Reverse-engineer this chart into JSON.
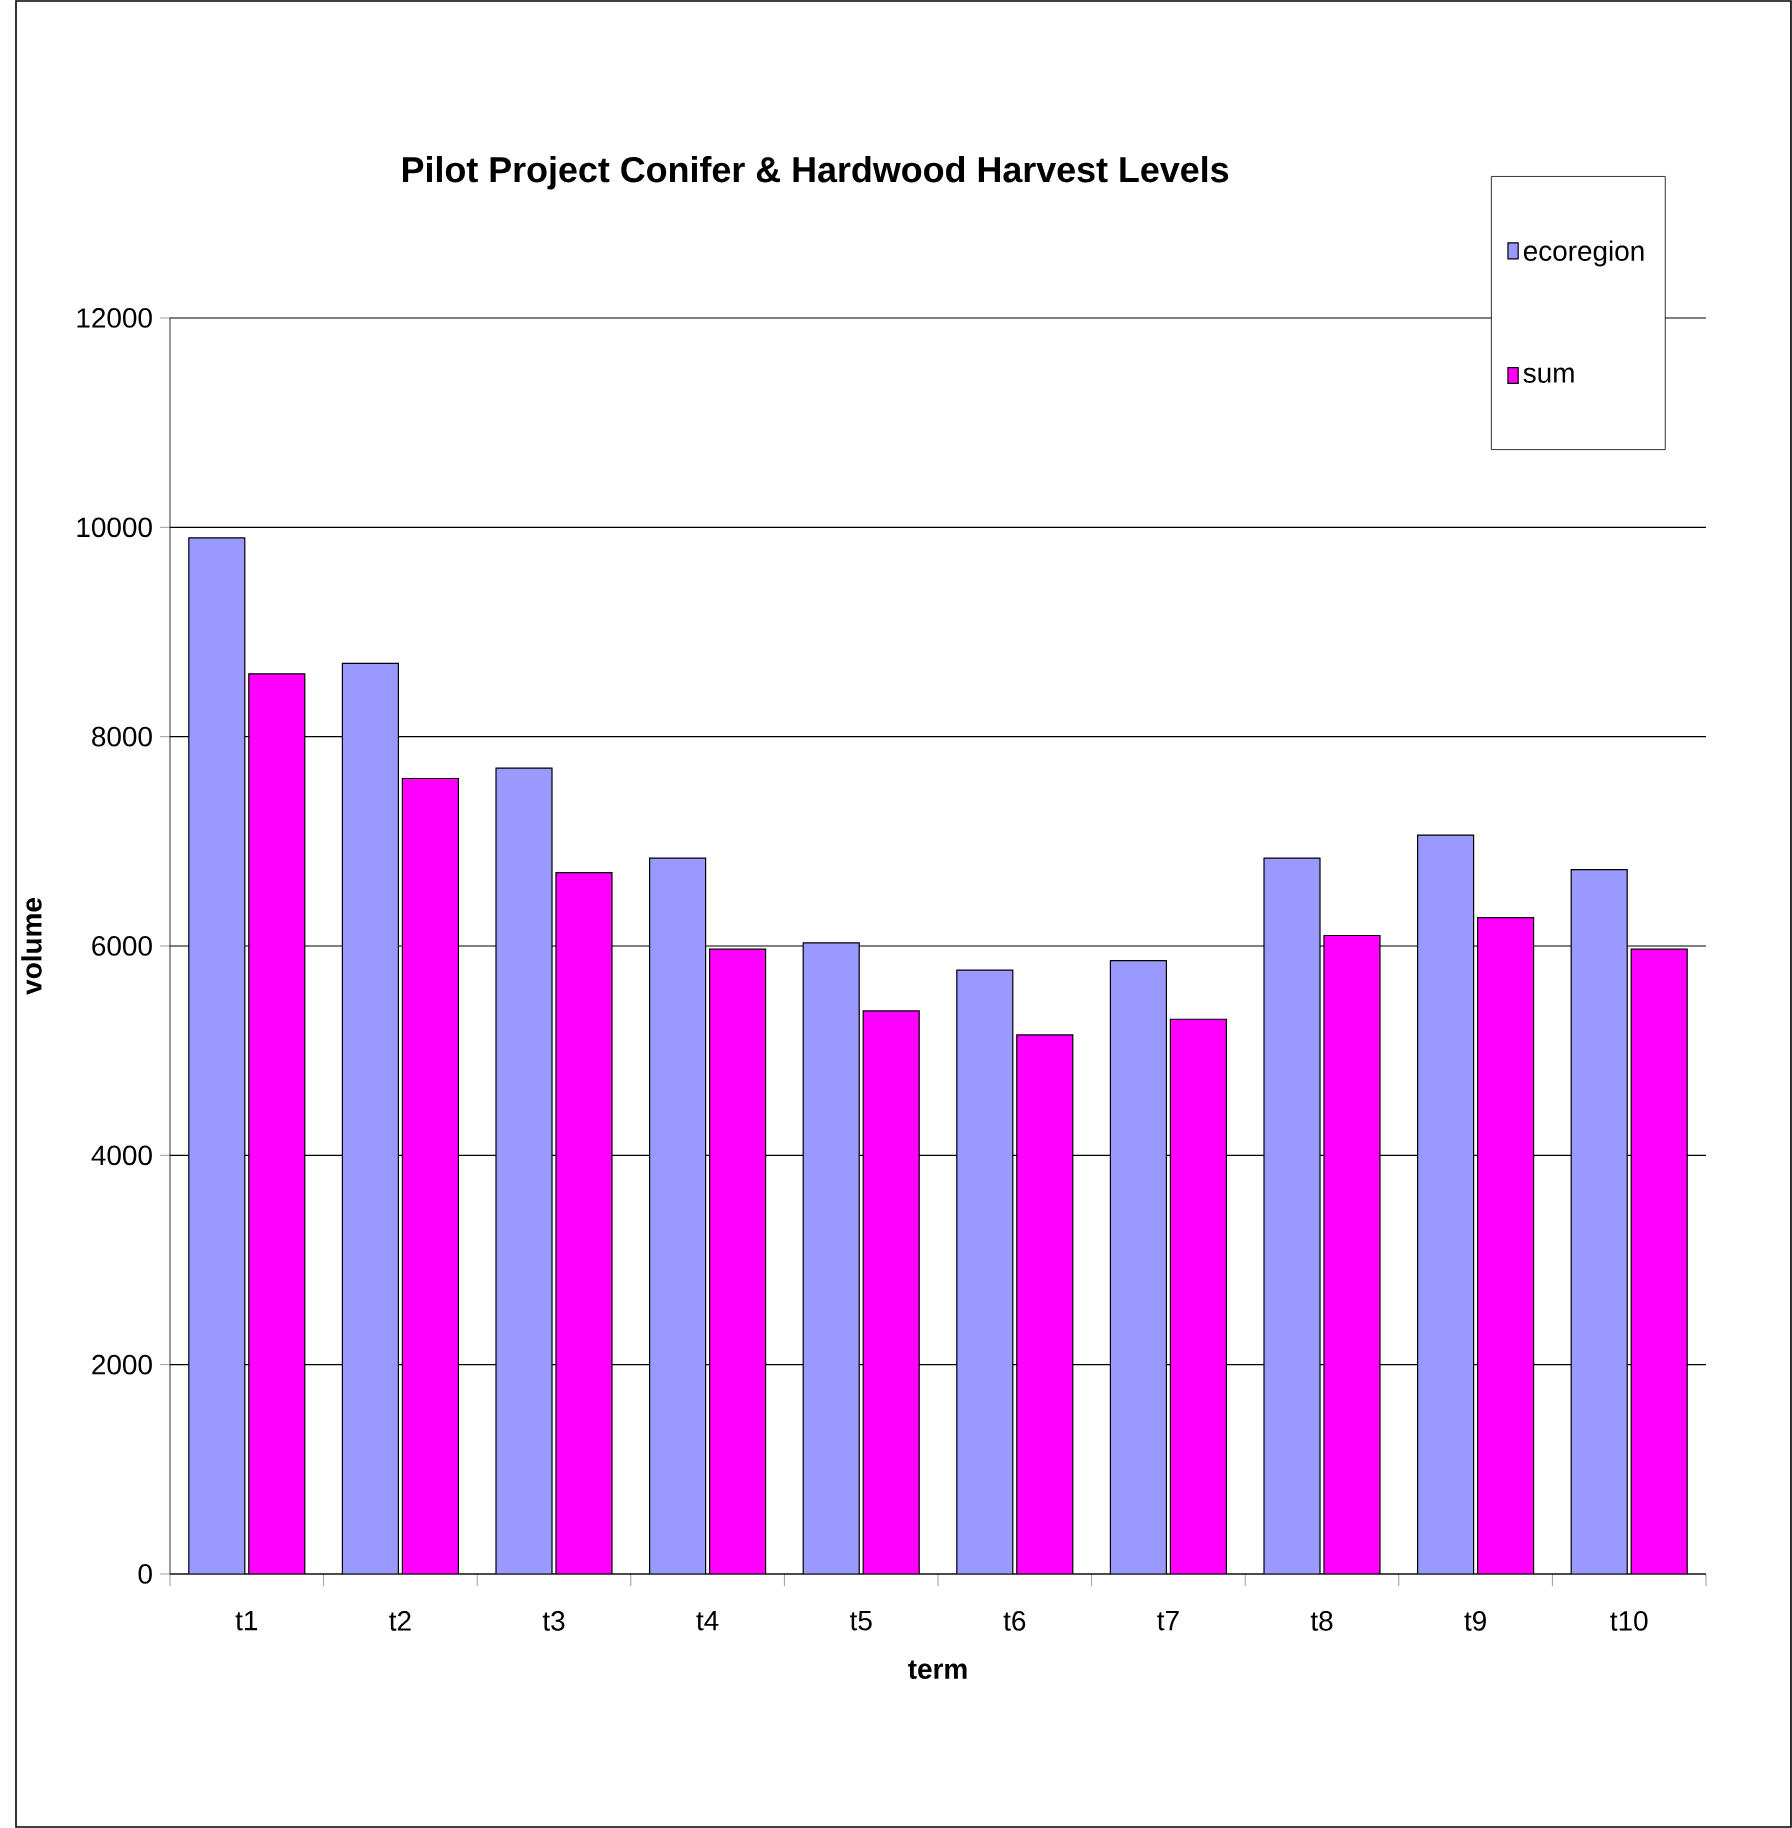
{
  "chart_data": {
    "type": "bar",
    "title": "Pilot Project Conifer & Hardwood Harvest Levels",
    "xlabel": "term",
    "ylabel": "volume",
    "categories": [
      "t1",
      "t2",
      "t3",
      "t4",
      "t5",
      "t6",
      "t7",
      "t8",
      "t9",
      "t10"
    ],
    "series": [
      {
        "name": "ecoregion",
        "color": "#9999ff",
        "values": [
          9900,
          8700,
          7700,
          6840,
          6030,
          5770,
          5860,
          6840,
          7060,
          6730
        ]
      },
      {
        "name": "sum",
        "color": "#ff00ff",
        "values": [
          8600,
          7600,
          6700,
          5970,
          5380,
          5150,
          5300,
          6100,
          6270,
          5970
        ]
      }
    ],
    "ylim": [
      0,
      12000
    ],
    "yticks": [
      0,
      2000,
      4000,
      6000,
      8000,
      10000,
      12000
    ],
    "grid": "y",
    "legend": "top right"
  }
}
